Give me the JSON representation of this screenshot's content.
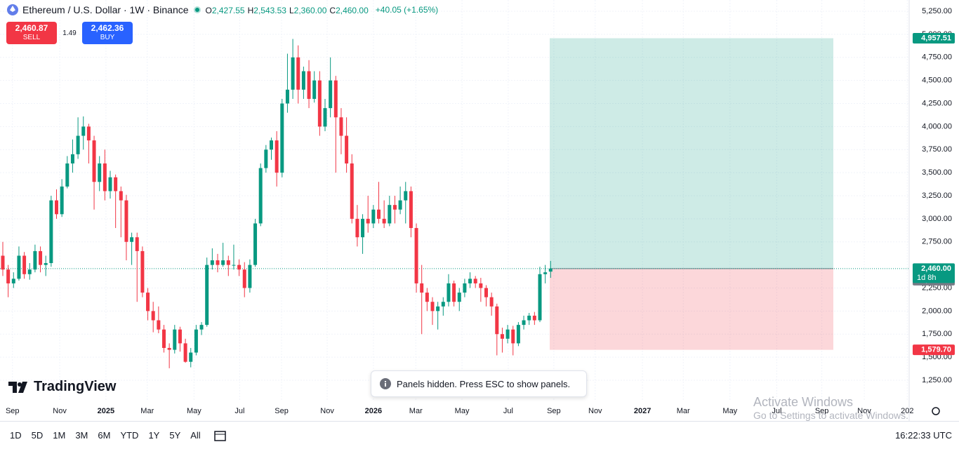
{
  "header": {
    "symbol": "Ethereum / U.S. Dollar · 1W · Binance",
    "ohlc": [
      {
        "key": "O",
        "value": "2,427.55"
      },
      {
        "key": "H",
        "value": "2,543.53"
      },
      {
        "key": "L",
        "value": "2,360.00"
      },
      {
        "key": "C",
        "value": "2,460.00"
      }
    ],
    "change": "+40.05 (+1.65%)"
  },
  "trade": {
    "sell_price": "2,460.87",
    "sell": "SELL",
    "spread": "1.49",
    "buy_price": "2,462.36",
    "buy": "BUY"
  },
  "chart_data": {
    "type": "candlestick",
    "up_color": "#089981",
    "down_color": "#f23645",
    "candles": [
      [
        2600,
        2750,
        2380,
        2450
      ],
      [
        2450,
        2500,
        2150,
        2300
      ],
      [
        2300,
        2420,
        2250,
        2350
      ],
      [
        2350,
        2700,
        2330,
        2600
      ],
      [
        2600,
        2640,
        2350,
        2400
      ],
      [
        2400,
        2520,
        2340,
        2450
      ],
      [
        2450,
        2720,
        2420,
        2650
      ],
      [
        2650,
        2700,
        2420,
        2500
      ],
      [
        2500,
        2600,
        2380,
        2520
      ],
      [
        2520,
        3250,
        2480,
        3200
      ],
      [
        3200,
        3320,
        3000,
        3050
      ],
      [
        3050,
        3430,
        3020,
        3350
      ],
      [
        3350,
        3680,
        3330,
        3600
      ],
      [
        3600,
        3860,
        3500,
        3700
      ],
      [
        3700,
        4100,
        3650,
        3900
      ],
      [
        3900,
        4110,
        3750,
        4000
      ],
      [
        4000,
        4030,
        3600,
        3850
      ],
      [
        3850,
        3900,
        3100,
        3400
      ],
      [
        3400,
        3680,
        3300,
        3600
      ],
      [
        3600,
        3750,
        3200,
        3300
      ],
      [
        3300,
        3520,
        3220,
        3450
      ],
      [
        3450,
        3480,
        2900,
        3300
      ],
      [
        3300,
        3350,
        2800,
        3200
      ],
      [
        3200,
        3260,
        2550,
        2750
      ],
      [
        2750,
        2850,
        2500,
        2800
      ],
      [
        2800,
        2850,
        2100,
        2650
      ],
      [
        2650,
        2700,
        2150,
        2200
      ],
      [
        2200,
        2250,
        1900,
        2000
      ],
      [
        2000,
        2100,
        1770,
        1900
      ],
      [
        1900,
        2050,
        1760,
        1800
      ],
      [
        1800,
        1850,
        1550,
        1600
      ],
      [
        1600,
        1650,
        1380,
        1580
      ],
      [
        1580,
        1850,
        1540,
        1800
      ],
      [
        1800,
        1830,
        1560,
        1650
      ],
      [
        1650,
        1700,
        1440,
        1450
      ],
      [
        1450,
        1600,
        1390,
        1550
      ],
      [
        1550,
        1850,
        1520,
        1800
      ],
      [
        1800,
        1880,
        1740,
        1850
      ],
      [
        1850,
        2580,
        1830,
        2500
      ],
      [
        2500,
        2680,
        2450,
        2550
      ],
      [
        2550,
        2620,
        2420,
        2500
      ],
      [
        2500,
        2740,
        2480,
        2550
      ],
      [
        2550,
        2600,
        2380,
        2500
      ],
      [
        2500,
        2720,
        2450,
        2500
      ],
      [
        2500,
        2560,
        2380,
        2450
      ],
      [
        2450,
        2530,
        2150,
        2250
      ],
      [
        2250,
        2560,
        2200,
        2500
      ],
      [
        2500,
        3000,
        2480,
        2950
      ],
      [
        2950,
        3600,
        2920,
        3550
      ],
      [
        3550,
        3800,
        3500,
        3750
      ],
      [
        3750,
        3880,
        3640,
        3850
      ],
      [
        3850,
        3950,
        3350,
        3500
      ],
      [
        3500,
        4300,
        3450,
        4250
      ],
      [
        4250,
        4790,
        4150,
        4400
      ],
      [
        4400,
        4950,
        4300,
        4750
      ],
      [
        4750,
        4880,
        4250,
        4400
      ],
      [
        4400,
        4650,
        4300,
        4600
      ],
      [
        4600,
        4720,
        4200,
        4300
      ],
      [
        4300,
        4600,
        4260,
        4500
      ],
      [
        4500,
        4600,
        3900,
        4000
      ],
      [
        4000,
        4300,
        3950,
        4200
      ],
      [
        4200,
        4750,
        4100,
        4500
      ],
      [
        4500,
        4550,
        3500,
        4100
      ],
      [
        4100,
        4200,
        3700,
        3900
      ],
      [
        3900,
        4100,
        3500,
        3600
      ],
      [
        3600,
        3700,
        2950,
        3000
      ],
      [
        3000,
        3150,
        2700,
        2800
      ],
      [
        2800,
        3050,
        2620,
        3000
      ],
      [
        3000,
        3250,
        2850,
        2950
      ],
      [
        2950,
        3150,
        2900,
        3100
      ],
      [
        3100,
        3400,
        2950,
        3000
      ],
      [
        3000,
        3200,
        2900,
        2950
      ],
      [
        2950,
        3250,
        2920,
        3150
      ],
      [
        3150,
        3250,
        2950,
        3100
      ],
      [
        3100,
        3350,
        3050,
        3200
      ],
      [
        3200,
        3400,
        2950,
        3300
      ],
      [
        3300,
        3350,
        2800,
        2900
      ],
      [
        2900,
        2950,
        2200,
        2300
      ],
      [
        2300,
        2500,
        1750,
        2200
      ],
      [
        2200,
        2250,
        2000,
        2100
      ],
      [
        2100,
        2150,
        1850,
        2000
      ],
      [
        2000,
        2100,
        1800,
        2050
      ],
      [
        2050,
        2150,
        1950,
        2100
      ],
      [
        2100,
        2400,
        2050,
        2300
      ],
      [
        2300,
        2330,
        2050,
        2100
      ],
      [
        2100,
        2250,
        2000,
        2200
      ],
      [
        2200,
        2350,
        2150,
        2300
      ],
      [
        2300,
        2420,
        2250,
        2350
      ],
      [
        2350,
        2380,
        2250,
        2300
      ],
      [
        2300,
        2360,
        2100,
        2250
      ],
      [
        2250,
        2280,
        2050,
        2150
      ],
      [
        2150,
        2200,
        1950,
        2050
      ],
      [
        2050,
        2080,
        1520,
        1750
      ],
      [
        1750,
        1820,
        1550,
        1700
      ],
      [
        1700,
        1850,
        1650,
        1800
      ],
      [
        1800,
        1840,
        1520,
        1650
      ],
      [
        1650,
        1880,
        1620,
        1850
      ],
      [
        1850,
        1950,
        1800,
        1900
      ],
      [
        1900,
        1980,
        1850,
        1950
      ],
      [
        1950,
        1990,
        1850,
        1900
      ],
      [
        1900,
        2480,
        1880,
        2400
      ],
      [
        2400,
        2500,
        2300,
        2419.95
      ],
      [
        2427.55,
        2543.53,
        2360,
        2460
      ]
    ],
    "ylim": [
      1037,
      5372
    ],
    "yticks": [
      {
        "value": 1250,
        "label": "1,250.00"
      },
      {
        "value": 1500,
        "label": "1,500.00"
      },
      {
        "value": 1750,
        "label": "1,750.00"
      },
      {
        "value": 2000,
        "label": "2,000.00"
      },
      {
        "value": 2250,
        "label": "2,250.00"
      },
      {
        "value": 2750,
        "label": "2,750.00"
      },
      {
        "value": 3000,
        "label": "3,000.00"
      },
      {
        "value": 3250,
        "label": "3,250.00"
      },
      {
        "value": 3500,
        "label": "3,500.00"
      },
      {
        "value": 3750,
        "label": "3,750.00"
      },
      {
        "value": 4000,
        "label": "4,000.00"
      },
      {
        "value": 4250,
        "label": "4,250.00"
      },
      {
        "value": 4500,
        "label": "4,500.00"
      },
      {
        "value": 4750,
        "label": "4,750.00"
      },
      {
        "value": 5000,
        "label": "5,000.00"
      },
      {
        "value": 5250,
        "label": "5,250.00"
      }
    ],
    "xticks": [
      {
        "value": 1.8,
        "label": "Sep"
      },
      {
        "value": 10.6,
        "label": "Nov"
      },
      {
        "value": 19.2,
        "label": "2025"
      },
      {
        "value": 26.9,
        "label": "Mar"
      },
      {
        "value": 35.6,
        "label": "May"
      },
      {
        "value": 44.1,
        "label": "Jul"
      },
      {
        "value": 51.9,
        "label": "Sep"
      },
      {
        "value": 60.4,
        "label": "Nov"
      },
      {
        "value": 69.0,
        "label": "2026"
      },
      {
        "value": 76.9,
        "label": "Mar"
      },
      {
        "value": 85.5,
        "label": "May"
      },
      {
        "value": 94.1,
        "label": "Jul"
      },
      {
        "value": 102.6,
        "label": "Sep"
      },
      {
        "value": 110.3,
        "label": "Nov"
      },
      {
        "value": 119.1,
        "label": "2027"
      },
      {
        "value": 126.7,
        "label": "Mar"
      },
      {
        "value": 135.4,
        "label": "May"
      },
      {
        "value": 144.1,
        "label": "Jul"
      },
      {
        "value": 152.5,
        "label": "Sep"
      },
      {
        "value": 160.4,
        "label": "Nov"
      },
      {
        "value": 168.4,
        "label": "202"
      }
    ],
    "grid": true,
    "position": {
      "target": 4957.51,
      "target_label": "4,957.51",
      "entry": 2460,
      "entry_label": "2,460.00",
      "stop": 1579.7,
      "stop_label": "1,579.70"
    },
    "last_price": 2460,
    "last_price_label": "2,460.00",
    "countdown": "1d 8h"
  },
  "logo": "TradingView",
  "toast": "Panels hidden. Press ESC to show panels.",
  "toolbar": {
    "ranges": [
      "1D",
      "5D",
      "1M",
      "3M",
      "6M",
      "YTD",
      "1Y",
      "5Y",
      "All"
    ],
    "clock": "16:22:33 UTC"
  },
  "watermark": {
    "title": "Activate Windows",
    "subtitle": "Go to Settings to activate Windows."
  }
}
